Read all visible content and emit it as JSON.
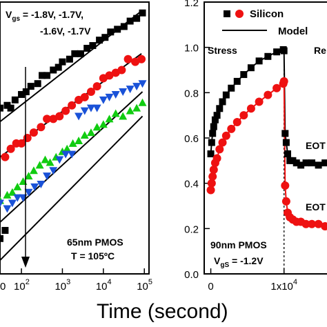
{
  "xaxis_label": "Time (second)",
  "chart_data": [
    {
      "type": "scatter",
      "xscale": "log",
      "xlim": [
        30,
        130000
      ],
      "ylim": [
        0,
        10
      ],
      "xticks": [
        {
          "v": 100,
          "label": "10",
          "exp": "2"
        },
        {
          "v": 1000,
          "label": "10",
          "exp": "3"
        },
        {
          "v": 10000,
          "label": "10",
          "exp": "4"
        },
        {
          "v": 100000,
          "label": "10",
          "exp": "5"
        }
      ],
      "xtick_partial": {
        "v": 35,
        "label": "0"
      },
      "annotations": {
        "vgs_prefix": "V",
        "vgs_sub": "gs",
        "vgs_line1": " = -1.8V, -1.7V,",
        "vgs_line2": "-1.6V, -1.7V",
        "device": "65nm PMOS",
        "temp": "T = 105ºC"
      },
      "series": [
        {
          "marker": "square",
          "color": "#000000",
          "x": [
            30,
            45,
            55,
            70,
            100,
            130,
            170,
            250,
            320,
            420,
            600,
            800,
            1000,
            1500,
            2000,
            2800,
            4000,
            5500,
            8000,
            11000,
            15000,
            22000,
            32000,
            45000,
            65000,
            90000
          ],
          "y": [
            6.1,
            6.2,
            6.1,
            6.4,
            6.6,
            6.7,
            6.9,
            7.0,
            7.3,
            7.3,
            7.5,
            7.6,
            7.8,
            7.9,
            8.1,
            8.1,
            8.3,
            8.4,
            8.6,
            8.7,
            8.9,
            9.0,
            9.1,
            9.3,
            9.4,
            9.6
          ],
          "fit_y": [
            5.6,
            9.7
          ]
        },
        {
          "marker": "circle",
          "color": "#ee1111",
          "x": [
            40,
            55,
            75,
            100,
            140,
            200,
            300,
            420,
            600,
            850,
            1200,
            1700,
            2500,
            3500,
            5000,
            7000,
            10000,
            14000,
            20000,
            28000,
            40000,
            60000,
            85000
          ],
          "y": [
            4.3,
            4.6,
            4.8,
            4.8,
            5.0,
            5.2,
            5.4,
            5.7,
            5.7,
            5.8,
            6.0,
            6.2,
            6.4,
            6.5,
            6.7,
            6.9,
            7.2,
            7.3,
            7.4,
            7.5,
            7.9,
            7.8,
            7.9
          ],
          "fit_y": [
            4.3,
            8.1
          ]
        },
        {
          "marker": "tri-down",
          "color": "#1a52d8",
          "x": [
            2500,
            3500,
            5000,
            7000,
            10000,
            14000,
            20000,
            30000,
            45000,
            65000,
            90000
          ],
          "y": [
            5.8,
            6.0,
            6.1,
            6.1,
            6.4,
            6.5,
            6.6,
            6.7,
            6.8,
            6.9,
            7.0
          ],
          "fit_y": [
            1.9,
            6.7
          ]
        },
        {
          "marker": "tri-up",
          "color": "#11cc11",
          "x": [
            30,
            45,
            60,
            80,
            110,
            150,
            200,
            280,
            380,
            500,
            700,
            1000,
            1300,
            1800,
            2500,
            3500,
            5000,
            7000,
            10000,
            14000,
            20000,
            30000,
            45000,
            65000,
            90000
          ],
          "y": [
            2.7,
            2.9,
            3.0,
            3.2,
            3.4,
            3.6,
            3.8,
            4.0,
            4.2,
            4.1,
            4.3,
            4.5,
            4.6,
            4.8,
            4.9,
            5.1,
            5.2,
            5.4,
            5.5,
            5.7,
            5.9,
            5.8,
            6.0,
            6.1,
            6.3
          ],
          "fit_y": [
            0.5,
            5.8
          ]
        },
        {
          "marker": "tri-down",
          "color": "#1a52d8",
          "x": [
            30,
            45,
            60,
            80,
            110,
            150,
            210,
            300,
            420,
            600,
            850,
            1200,
            1700
          ],
          "y": [
            2.6,
            2.4,
            2.6,
            2.8,
            2.8,
            3.0,
            3.2,
            3.3,
            3.6,
            3.8,
            4.2,
            4.4,
            4.4
          ]
        },
        {
          "marker": "square",
          "color": "#000000",
          "x": [
            30,
            40
          ],
          "y": [
            1.3,
            1.6
          ]
        }
      ]
    },
    {
      "type": "scatter",
      "xlim": [
        -900,
        17000
      ],
      "ylim": [
        0,
        1.2
      ],
      "yticks": [
        "0.0",
        "0.2",
        "0.4",
        "0.6",
        "0.8",
        "1.0",
        "1.2"
      ],
      "ytick_values": [
        0,
        0.2,
        0.4,
        0.6,
        0.8,
        1.0,
        1.2
      ],
      "xticks": [
        {
          "v": 0,
          "label": "0"
        },
        {
          "v": 10000,
          "label": "1x10",
          "exp": "4"
        }
      ],
      "switch_x": 10000,
      "legend": [
        "Silicon",
        "Model"
      ],
      "annotations": {
        "stress": "Stress",
        "recovery_partial": "Re",
        "eot1": "EOT",
        "eot2": "EOT",
        "device": "90nm PMOS",
        "vgs_prefix": "V",
        "vgs_sub": "gS",
        "vgs_value": " = -1.2V"
      },
      "series": [
        {
          "name": "Silicon",
          "marker": "square",
          "color": "#000000",
          "x": [
            0,
            120,
            250,
            400,
            600,
            850,
            1200,
            1600,
            2100,
            2800,
            3600,
            4500,
            5500,
            6600,
            7800,
            9000,
            9900,
            10000,
            10150,
            10300,
            10500,
            10800,
            11200,
            11700,
            12300,
            13000,
            13800,
            14700,
            15600,
            16500
          ],
          "y": [
            0.53,
            0.58,
            0.62,
            0.65,
            0.68,
            0.7,
            0.73,
            0.76,
            0.79,
            0.82,
            0.85,
            0.88,
            0.91,
            0.94,
            0.96,
            0.98,
            0.99,
            0.985,
            0.62,
            0.58,
            0.53,
            0.5,
            0.5,
            0.49,
            0.48,
            0.49,
            0.49,
            0.48,
            0.49,
            0.48
          ]
        },
        {
          "name": "Silicon",
          "marker": "circle",
          "color": "#ee1111",
          "x": [
            0,
            120,
            250,
            400,
            600,
            850,
            1200,
            1600,
            2100,
            2800,
            3600,
            4500,
            5500,
            6600,
            7800,
            9000,
            9900,
            10000,
            10150,
            10300,
            10500,
            10800,
            11200,
            11700,
            12300,
            13000,
            13800,
            14700,
            15600,
            16500
          ],
          "y": [
            0.37,
            0.4,
            0.43,
            0.46,
            0.49,
            0.51,
            0.55,
            0.58,
            0.61,
            0.64,
            0.67,
            0.7,
            0.73,
            0.76,
            0.79,
            0.82,
            0.84,
            0.85,
            0.39,
            0.32,
            0.27,
            0.25,
            0.24,
            0.23,
            0.23,
            0.22,
            0.22,
            0.22,
            0.21,
            0.21
          ]
        }
      ]
    }
  ]
}
